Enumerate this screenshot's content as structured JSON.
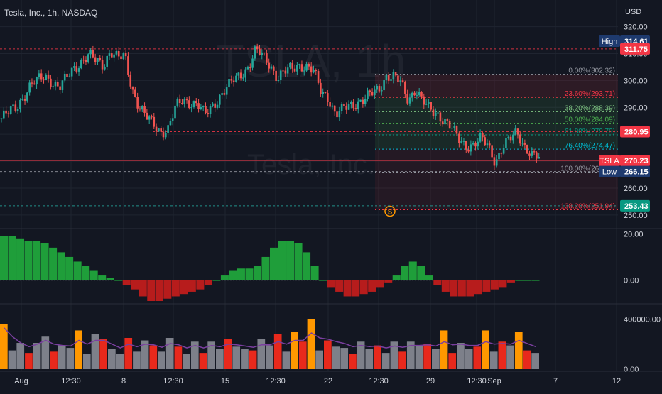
{
  "header": {
    "symbol_title": "Tesla, Inc., 1h, NASDAQ",
    "currency": "USD",
    "watermark_symbol": "TSLA, 1h",
    "watermark_name": "Tesla, Inc."
  },
  "colors": {
    "background": "#131722",
    "grid": "#1f2430",
    "axis_text": "#d1d4dc",
    "up": "#26a69a",
    "down": "#ef5350",
    "high_label": "#1e3a6e",
    "price_label": "#f23645",
    "green_label": "#089981",
    "hist_up": "#1f9e3a",
    "hist_down": "#b71c1c",
    "volume_grey": "#7d808a",
    "volume_red": "#e8291c",
    "volume_orange": "#ff9800",
    "volume_ma": "#7b3fa0"
  },
  "chart_data": [
    {
      "type": "candlestick",
      "name": "price",
      "ylim": [
        246,
        322
      ],
      "yticks": [
        "250.00",
        "260.00",
        "270.00",
        "280.00",
        "290.00",
        "300.00",
        "310.00",
        "320.00"
      ],
      "xticks": [
        "Aug",
        "12:30",
        "8",
        "12:30",
        "15",
        "12:30",
        "22",
        "12:30",
        "29",
        "12:30",
        "Sep",
        "7",
        "12"
      ],
      "close_path": [
        [
          0,
          286
        ],
        [
          2,
          290
        ],
        [
          4,
          298
        ],
        [
          6,
          302
        ],
        [
          8,
          297
        ],
        [
          10,
          305
        ],
        [
          12,
          309
        ],
        [
          14,
          306
        ],
        [
          15,
          311
        ],
        [
          16,
          308
        ],
        [
          17,
          309
        ],
        [
          18,
          297
        ],
        [
          19,
          290
        ],
        [
          20,
          286
        ],
        [
          22,
          281
        ],
        [
          23,
          282
        ],
        [
          24,
          290
        ],
        [
          25,
          293
        ],
        [
          27,
          291
        ],
        [
          28,
          287
        ],
        [
          30,
          294
        ],
        [
          32,
          300
        ],
        [
          34,
          305
        ],
        [
          35,
          311
        ],
        [
          36,
          309
        ],
        [
          37,
          306
        ],
        [
          38,
          301
        ],
        [
          39,
          303
        ],
        [
          41,
          306
        ],
        [
          42,
          305
        ],
        [
          43,
          303
        ],
        [
          44,
          296
        ],
        [
          45,
          294
        ],
        [
          46,
          287
        ],
        [
          48,
          291
        ],
        [
          50,
          293
        ],
        [
          52,
          297
        ],
        [
          53,
          302
        ],
        [
          54,
          301
        ],
        [
          55,
          299
        ],
        [
          56,
          293
        ],
        [
          57,
          297
        ],
        [
          58,
          292
        ],
        [
          59,
          289
        ],
        [
          60,
          288
        ],
        [
          61,
          285
        ],
        [
          62,
          282
        ],
        [
          63,
          278
        ],
        [
          64,
          276
        ],
        [
          65,
          276
        ],
        [
          66,
          278
        ],
        [
          67,
          276
        ],
        [
          68,
          270
        ],
        [
          69,
          275
        ],
        [
          70,
          278
        ],
        [
          71,
          281
        ],
        [
          72,
          276
        ],
        [
          73,
          272
        ],
        [
          74,
          271
        ]
      ],
      "levels": [
        {
          "name": "High",
          "value": 314.61,
          "label": "314.61"
        },
        {
          "name": "",
          "value": 311.75,
          "label": "311.75"
        },
        {
          "name": "",
          "value": 280.95,
          "label": "280.95"
        },
        {
          "name": "TSLA",
          "value": 270.23,
          "label": "270.23"
        },
        {
          "name": "Low",
          "value": 266.15,
          "label": "266.15"
        },
        {
          "name": "",
          "value": 253.43,
          "label": "253.43"
        }
      ],
      "fibonacci": [
        {
          "label": "0.00%(302.32)",
          "value": 302.32,
          "color": "#9598a1"
        },
        {
          "label": "23.60%(293.71)",
          "value": 293.71,
          "color": "#f23645"
        },
        {
          "label": "38.20%(288.39)",
          "value": 288.39,
          "color": "#81c784"
        },
        {
          "label": "50.00%(284.09)",
          "value": 284.09,
          "color": "#4caf50"
        },
        {
          "label": "61.80%(279.79)",
          "value": 279.79,
          "color": "#089981"
        },
        {
          "label": "76.40%(274.47)",
          "value": 274.47,
          "color": "#00bcd4"
        },
        {
          "label": "100.00%(265.93)",
          "value": 265.93,
          "color": "#9598a1"
        },
        {
          "label": "138.20%(251.94)",
          "value": 251.94,
          "color": "#f23645"
        }
      ],
      "marker": "S"
    },
    {
      "type": "histogram",
      "name": "oscillator",
      "ylim": [
        -9,
        21
      ],
      "yticks": [
        "20.00",
        "0.00"
      ],
      "values": [
        19,
        19,
        18,
        17,
        17,
        16,
        14,
        12,
        10,
        8,
        6,
        4,
        2,
        1,
        0,
        -2,
        -4,
        -7,
        -9,
        -9,
        -8,
        -7,
        -6,
        -5,
        -4,
        -2,
        0,
        2,
        4,
        5,
        5,
        6,
        10,
        14,
        17,
        17,
        16,
        12,
        6,
        0,
        -3,
        -5,
        -7,
        -7,
        -6,
        -5,
        -3,
        -1,
        2,
        6,
        8,
        6,
        2,
        -2,
        -5,
        -7,
        -7,
        -7,
        -6,
        -5,
        -4,
        -3,
        -1,
        0,
        0,
        0
      ]
    },
    {
      "type": "bar",
      "name": "volume",
      "ylim": [
        0,
        500000
      ],
      "yticks": [
        "400000.00",
        "0.00"
      ],
      "values": [
        360000,
        150000,
        210000,
        130000,
        210000,
        260000,
        140000,
        190000,
        170000,
        310000,
        120000,
        280000,
        240000,
        160000,
        120000,
        250000,
        140000,
        230000,
        190000,
        140000,
        250000,
        180000,
        120000,
        220000,
        130000,
        220000,
        160000,
        240000,
        180000,
        160000,
        150000,
        240000,
        190000,
        280000,
        140000,
        300000,
        220000,
        400000,
        150000,
        230000,
        180000,
        170000,
        120000,
        220000,
        160000,
        190000,
        130000,
        220000,
        140000,
        220000,
        190000,
        200000,
        160000,
        310000,
        130000,
        210000,
        160000,
        180000,
        310000,
        140000,
        220000,
        190000,
        300000,
        150000,
        130000
      ],
      "ma": [
        330000,
        260000,
        210000,
        180000,
        200000,
        230000,
        200000,
        190000,
        185000,
        230000,
        200000,
        230000,
        230000,
        200000,
        170000,
        200000,
        180000,
        200000,
        195000,
        175000,
        205000,
        195000,
        170000,
        190000,
        170000,
        190000,
        180000,
        200000,
        195000,
        185000,
        175000,
        195000,
        195000,
        220000,
        200000,
        230000,
        230000,
        290000,
        250000,
        240000,
        220000,
        205000,
        180000,
        190000,
        180000,
        185000,
        170000,
        185000,
        175000,
        190000,
        190000,
        195000,
        185000,
        220000,
        195000,
        200000,
        190000,
        190000,
        220000,
        200000,
        205000,
        200000,
        230000,
        205000,
        180000
      ]
    }
  ]
}
